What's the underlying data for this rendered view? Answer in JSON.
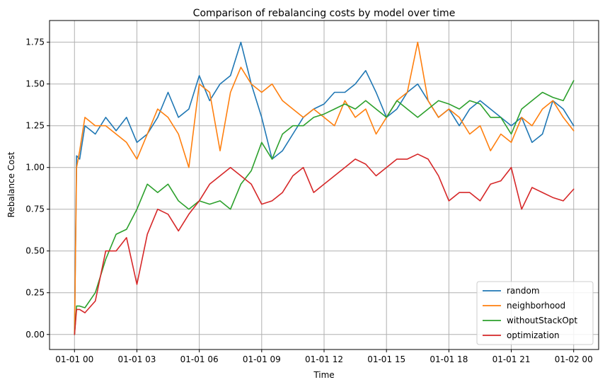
{
  "chart_data": {
    "type": "line",
    "title": "Comparison of rebalancing costs by model over time",
    "xlabel": "Time",
    "ylabel": "Rebalance Cost",
    "x_ticks": [
      "01-01 00",
      "01-01 03",
      "01-01 06",
      "01-01 09",
      "01-01 12",
      "01-01 15",
      "01-01 18",
      "01-01 21",
      "01-02 00"
    ],
    "y_ticks": [
      "0.00",
      "0.25",
      "0.50",
      "0.75",
      "1.00",
      "1.25",
      "1.50",
      "1.75"
    ],
    "xlim_hours": [
      -1.2,
      25.2
    ],
    "ylim": [
      -0.09,
      1.88
    ],
    "grid": true,
    "legend_position": "lower-right",
    "x": [
      0,
      0.1,
      0.25,
      0.5,
      1,
      1.5,
      2,
      2.5,
      3,
      3.5,
      4,
      4.5,
      5,
      5.5,
      6,
      6.5,
      7,
      7.5,
      8,
      8.5,
      9,
      9.5,
      10,
      10.5,
      11,
      11.5,
      12,
      12.5,
      13,
      13.5,
      14,
      14.5,
      15,
      15.5,
      16,
      16.5,
      17,
      17.5,
      18,
      18.5,
      19,
      19.5,
      20,
      20.5,
      21,
      21.5,
      22,
      22.5,
      23,
      23.5,
      24
    ],
    "series": [
      {
        "name": "random",
        "color": "#1f77b4",
        "values": [
          0.0,
          1.07,
          1.05,
          1.25,
          1.2,
          1.3,
          1.22,
          1.3,
          1.15,
          1.2,
          1.3,
          1.45,
          1.3,
          1.35,
          1.55,
          1.4,
          1.5,
          1.55,
          1.75,
          1.5,
          1.3,
          1.05,
          1.1,
          1.2,
          1.3,
          1.35,
          1.38,
          1.45,
          1.45,
          1.5,
          1.58,
          1.45,
          1.3,
          1.35,
          1.45,
          1.5,
          1.4,
          1.3,
          1.35,
          1.25,
          1.35,
          1.4,
          1.35,
          1.3,
          1.25,
          1.3,
          1.15,
          1.2,
          1.4,
          1.35,
          1.25
        ]
      },
      {
        "name": "neighborhood",
        "color": "#ff7f0e",
        "values": [
          0.0,
          1.0,
          1.1,
          1.3,
          1.25,
          1.25,
          1.2,
          1.15,
          1.05,
          1.2,
          1.35,
          1.3,
          1.2,
          1.0,
          1.5,
          1.45,
          1.1,
          1.45,
          1.6,
          1.5,
          1.45,
          1.5,
          1.4,
          1.35,
          1.3,
          1.35,
          1.3,
          1.25,
          1.4,
          1.3,
          1.35,
          1.2,
          1.3,
          1.4,
          1.45,
          1.75,
          1.4,
          1.3,
          1.35,
          1.3,
          1.2,
          1.25,
          1.1,
          1.2,
          1.15,
          1.3,
          1.25,
          1.35,
          1.4,
          1.3,
          1.22
        ]
      },
      {
        "name": "withoutStackOpt",
        "color": "#2ca02c",
        "values": [
          0.0,
          0.17,
          0.17,
          0.16,
          0.25,
          0.45,
          0.6,
          0.63,
          0.75,
          0.9,
          0.85,
          0.9,
          0.8,
          0.75,
          0.8,
          0.78,
          0.8,
          0.75,
          0.9,
          0.98,
          1.15,
          1.05,
          1.2,
          1.25,
          1.25,
          1.3,
          1.32,
          1.35,
          1.38,
          1.35,
          1.4,
          1.35,
          1.3,
          1.4,
          1.35,
          1.3,
          1.35,
          1.4,
          1.38,
          1.35,
          1.4,
          1.38,
          1.3,
          1.3,
          1.2,
          1.35,
          1.4,
          1.45,
          1.42,
          1.4,
          1.52
        ]
      },
      {
        "name": "optimization",
        "color": "#d62728",
        "values": [
          0.0,
          0.15,
          0.15,
          0.13,
          0.2,
          0.5,
          0.5,
          0.58,
          0.3,
          0.6,
          0.75,
          0.72,
          0.62,
          0.72,
          0.8,
          0.9,
          0.95,
          1.0,
          0.95,
          0.9,
          0.78,
          0.8,
          0.85,
          0.95,
          1.0,
          0.85,
          0.9,
          0.95,
          1.0,
          1.05,
          1.02,
          0.95,
          1.0,
          1.05,
          1.05,
          1.08,
          1.05,
          0.95,
          0.8,
          0.85,
          0.85,
          0.8,
          0.9,
          0.92,
          1.0,
          0.75,
          0.88,
          0.85,
          0.82,
          0.8,
          0.87
        ]
      }
    ]
  }
}
